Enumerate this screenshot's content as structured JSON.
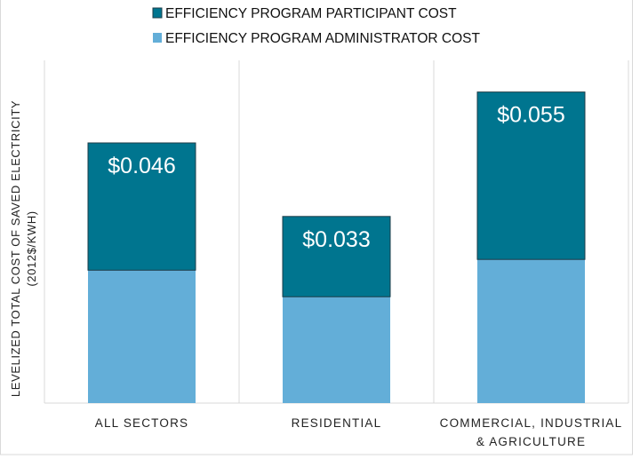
{
  "chart_data": {
    "type": "bar",
    "stacked": true,
    "categories": [
      "ALL SECTORS",
      "RESIDENTIAL",
      [
        "COMMERCIAL, INDUSTRIAL",
        "& AGRICULTURE"
      ]
    ],
    "series": [
      {
        "name": "EFFICIENCY PROGRAM ADMINISTRATOR COST",
        "values": [
          0.0235,
          0.0188,
          0.0254
        ],
        "color": "#63aed8"
      },
      {
        "name": "EFFICIENCY PROGRAM PARTICIPANT COST",
        "values": [
          0.0225,
          0.0142,
          0.0296
        ],
        "color": "#00758f"
      }
    ],
    "totals": [
      0.046,
      0.033,
      0.055
    ],
    "data_labels": [
      "$0.046",
      "$0.033",
      "$0.055"
    ],
    "ylabel": [
      "LEVELIZED TOTAL COST OF SAVED ELECTRICITY",
      "(2012$/KWH)"
    ],
    "ylim": [
      0,
      0.06
    ],
    "y_ticks_shown": false,
    "grid": "vertical category separators",
    "legend_position": "top",
    "legend_order": [
      "EFFICIENCY PROGRAM PARTICIPANT COST",
      "EFFICIENCY PROGRAM ADMINISTRATOR COST"
    ]
  }
}
